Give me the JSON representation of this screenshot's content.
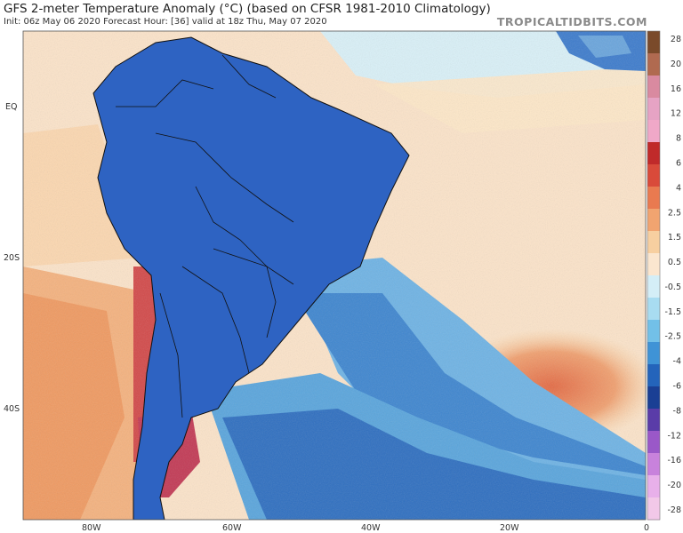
{
  "header": {
    "title": "GFS 2-meter Temperature Anomaly (°C) (based on CFSR 1981-2010 Climatology)",
    "subtitle": "Init: 06z May 06 2020   Forecast Hour: [36]   valid at 18z Thu, May 07 2020",
    "brand": "TROPICALTIDBITS.COM"
  },
  "map": {
    "region": "South America",
    "lat_labels": [
      "EQ",
      "20S",
      "40S"
    ],
    "lon_labels": [
      "80W",
      "60W",
      "40W",
      "20W",
      "0"
    ]
  },
  "colorbar": {
    "labels": [
      "28",
      "20",
      "16",
      "12",
      "8",
      "6",
      "4",
      "2.5",
      "1.5",
      "0.5",
      "-0.5",
      "-1.5",
      "-2.5",
      "-4",
      "-6",
      "-8",
      "-12",
      "-16",
      "-20",
      "-28"
    ],
    "colors": [
      "#7a4a2a",
      "#b06a50",
      "#d98aa0",
      "#e6a3c4",
      "#f0a8c8",
      "#c02a2a",
      "#d94a3a",
      "#e97a50",
      "#f1a470",
      "#f7cfa0",
      "#fbe6cf",
      "#d4eef7",
      "#a8dcf1",
      "#72c0e8",
      "#3f93d6",
      "#2464bb",
      "#1a3f94",
      "#5a3ca8",
      "#9a58c8",
      "#c882dc",
      "#e8b0ea",
      "#f2c8e8"
    ]
  }
}
